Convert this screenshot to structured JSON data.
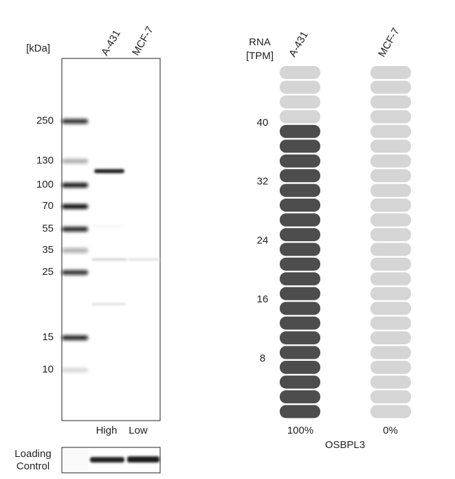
{
  "western_blot": {
    "unit_label": "[kDa]",
    "lanes": [
      "A-431",
      "MCF-7"
    ],
    "markers": [
      250,
      130,
      100,
      70,
      55,
      35,
      25,
      15,
      10
    ],
    "lane_levels": [
      "High",
      "Low"
    ],
    "loading_control": [
      "Loading",
      "Control"
    ]
  },
  "rna": {
    "axis_label": [
      "RNA",
      "[TPM]"
    ],
    "samples": [
      "A-431",
      "MCF-7"
    ],
    "ticks": [
      40,
      32,
      24,
      16,
      8
    ],
    "values": [
      40,
      0
    ],
    "value_labels": [
      "100%",
      "0%"
    ],
    "gene": "OSBPL3"
  }
}
